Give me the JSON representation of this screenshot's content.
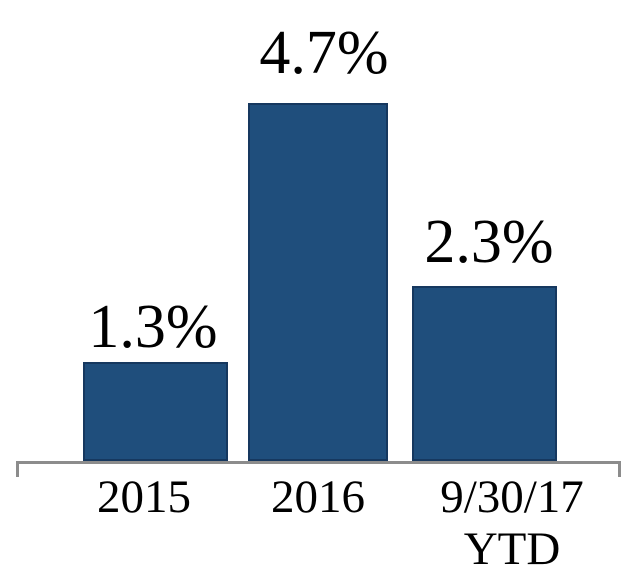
{
  "chart_data": {
    "type": "bar",
    "categories": [
      "2015",
      "2016",
      "9/30/17 YTD"
    ],
    "values": [
      1.3,
      4.7,
      2.3
    ],
    "data_labels": [
      "1.3%",
      "4.7%",
      "2.3%"
    ],
    "title": "",
    "xlabel": "",
    "ylabel": "",
    "ylim": [
      0,
      5
    ],
    "grid": false,
    "legend": false,
    "y_axis_visible": false,
    "bar_fill_color": "#1F4E7C",
    "bar_border_color": "#16385F",
    "axis_line_color": "#8C8C8C",
    "label_text_color": "#000000"
  },
  "x_axis": {
    "tick_labels": [
      {
        "lines": [
          "2015"
        ]
      },
      {
        "lines": [
          "2016"
        ]
      },
      {
        "lines": [
          "9/30/17",
          "YTD"
        ]
      }
    ]
  }
}
